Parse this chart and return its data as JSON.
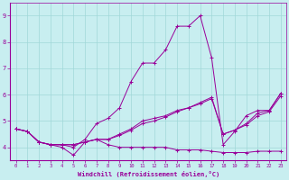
{
  "xlabel": "Windchill (Refroidissement éolien,°C)",
  "background_color": "#c8eef0",
  "line_color": "#990099",
  "grid_color": "#a0d8d8",
  "xlim": [
    -0.5,
    23.5
  ],
  "ylim": [
    3.5,
    9.5
  ],
  "xticks": [
    0,
    1,
    2,
    3,
    4,
    5,
    6,
    7,
    8,
    9,
    10,
    11,
    12,
    13,
    14,
    15,
    16,
    17,
    18,
    19,
    20,
    21,
    22,
    23
  ],
  "yticks": [
    4,
    5,
    6,
    7,
    8,
    9
  ],
  "line1": [
    4.7,
    4.6,
    4.2,
    4.1,
    4.0,
    3.7,
    4.2,
    4.3,
    4.1,
    4.0,
    4.0,
    4.0,
    4.0,
    4.0,
    3.9,
    3.9,
    3.9,
    3.85,
    3.8,
    3.8,
    3.8,
    3.85,
    3.85,
    3.85
  ],
  "line2": [
    4.7,
    4.6,
    4.2,
    4.1,
    4.1,
    4.0,
    4.3,
    4.9,
    5.1,
    5.5,
    6.5,
    7.2,
    7.2,
    7.7,
    8.6,
    8.6,
    9.0,
    7.4,
    4.1,
    4.6,
    5.2,
    5.4,
    5.4,
    6.05
  ],
  "line3": [
    4.7,
    4.6,
    4.2,
    4.1,
    4.1,
    4.1,
    4.2,
    4.3,
    4.3,
    4.5,
    4.7,
    5.0,
    5.1,
    5.2,
    5.4,
    5.5,
    5.7,
    5.9,
    4.5,
    4.65,
    4.9,
    5.3,
    5.4,
    6.05
  ],
  "line4": [
    4.7,
    4.6,
    4.2,
    4.1,
    4.1,
    4.1,
    4.2,
    4.3,
    4.3,
    4.45,
    4.65,
    4.9,
    5.0,
    5.15,
    5.35,
    5.5,
    5.65,
    5.85,
    4.5,
    4.65,
    4.85,
    5.2,
    5.35,
    5.95
  ]
}
